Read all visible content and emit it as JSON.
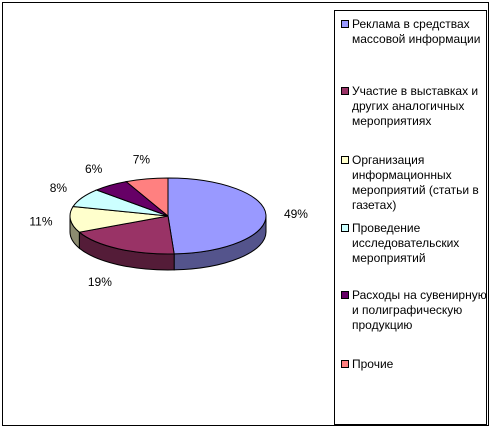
{
  "chart_data": {
    "type": "pie",
    "title": "",
    "series": [
      {
        "name": "Реклама в средствах массовой информации",
        "value": 49,
        "label": "49%",
        "color": "#9999ff"
      },
      {
        "name": "Участие в выставках и других аналогичных мероприятиях",
        "value": 19,
        "label": "19%",
        "color": "#993366"
      },
      {
        "name": "Организация информационных мероприятий (статьи в газетах)",
        "value": 11,
        "label": "11%",
        "color": "#ffffcc"
      },
      {
        "name": "Проведение исследовательских мероприятий",
        "value": 8,
        "label": "8%",
        "color": "#ccffff"
      },
      {
        "name": "Расходы на сувенирную и полиграфическую продукцию",
        "value": 6,
        "label": "6%",
        "color": "#660066"
      },
      {
        "name": "Прочие",
        "value": 7,
        "label": "7%",
        "color": "#ff8080"
      }
    ],
    "legend_position": "right",
    "style": "3d-pie"
  }
}
